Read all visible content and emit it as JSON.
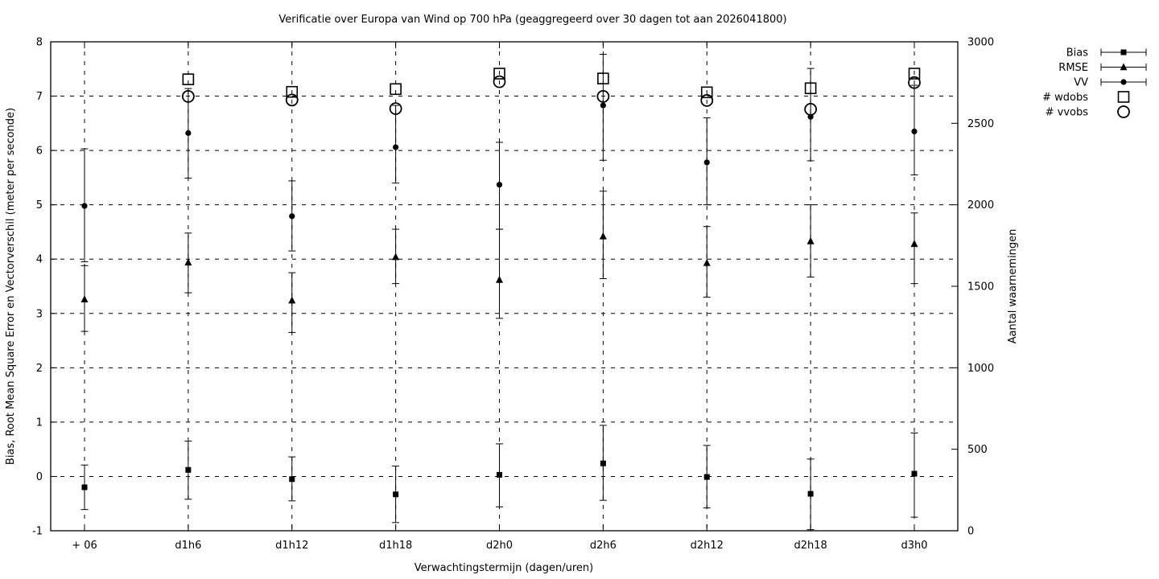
{
  "chart_data": {
    "type": "scatter",
    "title": "Verificatie over Europa van Wind op 700 hPa (geaggregeerd over 30 dagen tot aan 2026041800)",
    "xlabel": "Verwachtingstermijn (dagen/uren)",
    "ylabel_left": "Bias, Root Mean Square Error en Vectorverschil (meter per seconde)",
    "ylabel_right": "Aantal waarnemingen",
    "categories": [
      "+ 06",
      "d1h6",
      "d1h12",
      "d1h18",
      "d2h0",
      "d2h6",
      "d2h12",
      "d2h18",
      "d3h0"
    ],
    "y_left": {
      "min": -1,
      "max": 8,
      "ticks": [
        -1,
        0,
        1,
        2,
        3,
        4,
        5,
        6,
        7,
        8
      ],
      "gridlines": [
        0,
        1,
        2,
        3,
        4,
        5,
        6,
        7
      ]
    },
    "y_right": {
      "min": 0,
      "max": 3000,
      "ticks": [
        0,
        500,
        1000,
        1500,
        2000,
        2500,
        3000
      ]
    },
    "grid": true,
    "legend_position": "top-right-outside",
    "colors": {
      "foreground": "#000000",
      "background": "#ffffff"
    },
    "series": [
      {
        "name": "Bias",
        "axis": "left",
        "marker": "filled-square",
        "has_errorbars": true,
        "values": [
          -0.2,
          0.12,
          -0.05,
          -0.33,
          0.03,
          0.24,
          -0.01,
          -0.32,
          0.05
        ],
        "err_lo": [
          -0.61,
          -0.42,
          -0.45,
          -0.85,
          -0.56,
          -0.44,
          -0.58,
          -0.98,
          -0.75
        ],
        "err_hi": [
          0.21,
          0.65,
          0.36,
          0.19,
          0.6,
          0.94,
          0.57,
          0.32,
          0.8
        ]
      },
      {
        "name": "RMSE",
        "axis": "left",
        "marker": "filled-triangle",
        "has_errorbars": true,
        "values": [
          3.26,
          3.94,
          3.24,
          4.04,
          3.62,
          4.42,
          3.93,
          4.33,
          4.28
        ],
        "err_lo": [
          2.67,
          3.38,
          2.65,
          3.55,
          2.91,
          3.64,
          3.3,
          3.67,
          3.55
        ],
        "err_hi": [
          3.88,
          4.48,
          3.75,
          4.55,
          4.55,
          5.25,
          4.6,
          5.0,
          4.85
        ]
      },
      {
        "name": "VV",
        "axis": "left",
        "marker": "filled-circle",
        "has_errorbars": true,
        "values": [
          4.98,
          6.32,
          4.79,
          6.06,
          5.37,
          6.83,
          5.78,
          6.62,
          6.35
        ],
        "err_lo": [
          3.95,
          5.49,
          4.15,
          5.4,
          4.55,
          5.82,
          5.0,
          5.81,
          5.55
        ],
        "err_hi": [
          6.03,
          7.14,
          5.44,
          6.83,
          6.15,
          7.77,
          6.6,
          7.51,
          7.2
        ]
      },
      {
        "name": "# wdobs",
        "axis": "right",
        "marker": "open-square",
        "has_errorbars": false,
        "values": [
          null,
          2770,
          2693,
          2710,
          2805,
          2775,
          2690,
          2715,
          2805
        ]
      },
      {
        "name": "# vvobs",
        "axis": "right",
        "marker": "open-circle",
        "has_errorbars": false,
        "values": [
          null,
          2665,
          2643,
          2590,
          2755,
          2665,
          2640,
          2586,
          2750
        ]
      }
    ]
  }
}
